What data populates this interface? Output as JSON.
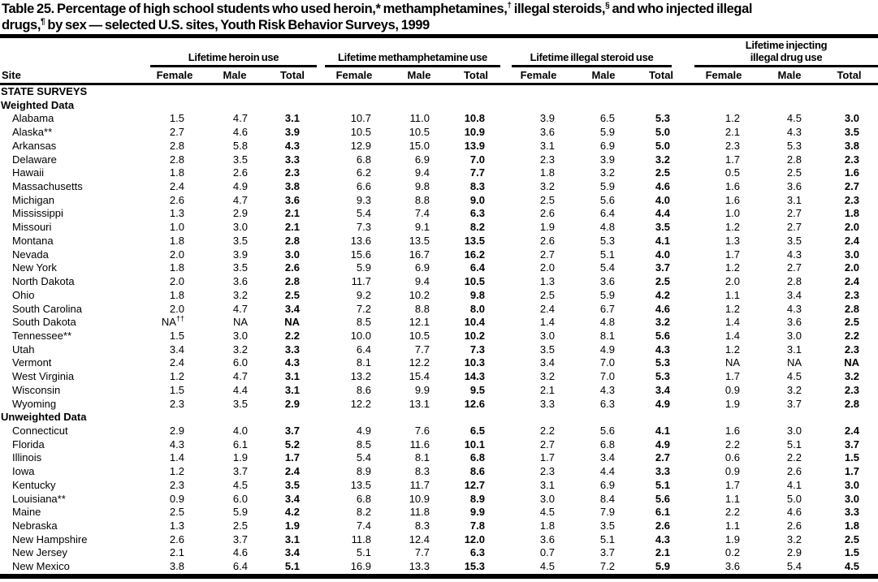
{
  "page": {
    "background": "#ffffff",
    "text_color": "#000000"
  },
  "title": {
    "line1": "Table 25. Percentage of high school students who used heroin,* methamphetamines,† illegal steroids,§ and who injected illegal",
    "line2": "drugs,¶ by sex — selected U.S. sites, Youth Risk Behavior Surveys, 1999"
  },
  "table": {
    "site_header": "Site",
    "column_groups": [
      {
        "label_lines": [
          "Lifetime heroin use"
        ]
      },
      {
        "label_lines": [
          "Lifetime methamphetamine use"
        ]
      },
      {
        "label_lines": [
          "Lifetime illegal steroid use"
        ]
      },
      {
        "label_lines": [
          "Lifetime injecting",
          "illegal drug use"
        ]
      }
    ],
    "sub_headers": [
      "Female",
      "Male",
      "Total"
    ],
    "sections": [
      {
        "heading": "STATE SURVEYS",
        "rows": []
      },
      {
        "heading": "Weighted Data",
        "rows": [
          {
            "site": "Alabama",
            "values": [
              "1.5",
              "4.7",
              "3.1",
              "10.7",
              "11.0",
              "10.8",
              "3.9",
              "6.5",
              "5.3",
              "1.2",
              "4.5",
              "3.0"
            ]
          },
          {
            "site": "Alaska**",
            "values": [
              "2.7",
              "4.6",
              "3.9",
              "10.5",
              "10.5",
              "10.9",
              "3.6",
              "5.9",
              "5.0",
              "2.1",
              "4.3",
              "3.5"
            ]
          },
          {
            "site": "Arkansas",
            "values": [
              "2.8",
              "5.8",
              "4.3",
              "12.9",
              "15.0",
              "13.9",
              "3.1",
              "6.9",
              "5.0",
              "2.3",
              "5.3",
              "3.8"
            ]
          },
          {
            "site": "Delaware",
            "values": [
              "2.8",
              "3.5",
              "3.3",
              "6.8",
              "6.9",
              "7.0",
              "2.3",
              "3.9",
              "3.2",
              "1.7",
              "2.8",
              "2.3"
            ]
          },
          {
            "site": "Hawaii",
            "values": [
              "1.8",
              "2.6",
              "2.3",
              "6.2",
              "9.4",
              "7.7",
              "1.8",
              "3.2",
              "2.5",
              "0.5",
              "2.5",
              "1.6"
            ]
          },
          {
            "site": "Massachusetts",
            "values": [
              "2.4",
              "4.9",
              "3.8",
              "6.6",
              "9.8",
              "8.3",
              "3.2",
              "5.9",
              "4.6",
              "1.6",
              "3.6",
              "2.7"
            ]
          },
          {
            "site": "Michigan",
            "values": [
              "2.6",
              "4.7",
              "3.6",
              "9.3",
              "8.8",
              "9.0",
              "2.5",
              "5.6",
              "4.0",
              "1.6",
              "3.1",
              "2.3"
            ]
          },
          {
            "site": "Mississippi",
            "values": [
              "1.3",
              "2.9",
              "2.1",
              "5.4",
              "7.4",
              "6.3",
              "2.6",
              "6.4",
              "4.4",
              "1.0",
              "2.7",
              "1.8"
            ]
          },
          {
            "site": "Missouri",
            "values": [
              "1.0",
              "3.0",
              "2.1",
              "7.3",
              "9.1",
              "8.2",
              "1.9",
              "4.8",
              "3.5",
              "1.2",
              "2.7",
              "2.0"
            ]
          },
          {
            "site": "Montana",
            "values": [
              "1.8",
              "3.5",
              "2.8",
              "13.6",
              "13.5",
              "13.5",
              "2.6",
              "5.3",
              "4.1",
              "1.3",
              "3.5",
              "2.4"
            ]
          },
          {
            "site": "Nevada",
            "values": [
              "2.0",
              "3.9",
              "3.0",
              "15.6",
              "16.7",
              "16.2",
              "2.7",
              "5.1",
              "4.0",
              "1.7",
              "4.3",
              "3.0"
            ]
          },
          {
            "site": "New York",
            "values": [
              "1.8",
              "3.5",
              "2.6",
              "5.9",
              "6.9",
              "6.4",
              "2.0",
              "5.4",
              "3.7",
              "1.2",
              "2.7",
              "2.0"
            ]
          },
          {
            "site": "North Dakota",
            "values": [
              "2.0",
              "3.6",
              "2.8",
              "11.7",
              "9.4",
              "10.5",
              "1.3",
              "3.6",
              "2.5",
              "2.0",
              "2.8",
              "2.4"
            ]
          },
          {
            "site": "Ohio",
            "values": [
              "1.8",
              "3.2",
              "2.5",
              "9.2",
              "10.2",
              "9.8",
              "2.5",
              "5.9",
              "4.2",
              "1.1",
              "3.4",
              "2.3"
            ]
          },
          {
            "site": "South Carolina",
            "values": [
              "2.0",
              "4.7",
              "3.4",
              "7.2",
              "8.8",
              "8.0",
              "2.4",
              "6.7",
              "4.6",
              "1.2",
              "4.3",
              "2.8"
            ]
          },
          {
            "site": "South Dakota",
            "values": [
              "NA††",
              "NA",
              "NA",
              "8.5",
              "12.1",
              "10.4",
              "1.4",
              "4.8",
              "3.2",
              "1.4",
              "3.6",
              "2.5"
            ]
          },
          {
            "site": "Tennessee**",
            "values": [
              "1.5",
              "3.0",
              "2.2",
              "10.0",
              "10.5",
              "10.2",
              "3.0",
              "8.1",
              "5.6",
              "1.4",
              "3.0",
              "2.2"
            ]
          },
          {
            "site": "Utah",
            "values": [
              "3.4",
              "3.2",
              "3.3",
              "6.4",
              "7.7",
              "7.3",
              "3.5",
              "4.9",
              "4.3",
              "1.2",
              "3.1",
              "2.3"
            ]
          },
          {
            "site": "Vermont",
            "values": [
              "2.4",
              "6.0",
              "4.3",
              "8.1",
              "12.2",
              "10.3",
              "3.4",
              "7.0",
              "5.3",
              "NA",
              "NA",
              "NA"
            ]
          },
          {
            "site": "West Virginia",
            "values": [
              "1.2",
              "4.7",
              "3.1",
              "13.2",
              "15.4",
              "14.3",
              "3.2",
              "7.0",
              "5.3",
              "1.7",
              "4.5",
              "3.2"
            ]
          },
          {
            "site": "Wisconsin",
            "values": [
              "1.5",
              "4.4",
              "3.1",
              "8.6",
              "9.9",
              "9.5",
              "2.1",
              "4.3",
              "3.4",
              "0.9",
              "3.2",
              "2.3"
            ]
          },
          {
            "site": "Wyoming",
            "values": [
              "2.3",
              "3.5",
              "2.9",
              "12.2",
              "13.1",
              "12.6",
              "3.3",
              "6.3",
              "4.9",
              "1.9",
              "3.7",
              "2.8"
            ]
          }
        ]
      },
      {
        "heading": "Unweighted Data",
        "rows": [
          {
            "site": "Connecticut",
            "values": [
              "2.9",
              "4.0",
              "3.7",
              "4.9",
              "7.6",
              "6.5",
              "2.2",
              "5.6",
              "4.1",
              "1.6",
              "3.0",
              "2.4"
            ]
          },
          {
            "site": "Florida",
            "values": [
              "4.3",
              "6.1",
              "5.2",
              "8.5",
              "11.6",
              "10.1",
              "2.7",
              "6.8",
              "4.9",
              "2.2",
              "5.1",
              "3.7"
            ]
          },
          {
            "site": "Illinois",
            "values": [
              "1.4",
              "1.9",
              "1.7",
              "5.4",
              "8.1",
              "6.8",
              "1.7",
              "3.4",
              "2.7",
              "0.6",
              "2.2",
              "1.5"
            ]
          },
          {
            "site": "Iowa",
            "values": [
              "1.2",
              "3.7",
              "2.4",
              "8.9",
              "8.3",
              "8.6",
              "2.3",
              "4.4",
              "3.3",
              "0.9",
              "2.6",
              "1.7"
            ]
          },
          {
            "site": "Kentucky",
            "values": [
              "2.3",
              "4.5",
              "3.5",
              "13.5",
              "11.7",
              "12.7",
              "3.1",
              "6.9",
              "5.1",
              "1.7",
              "4.1",
              "3.0"
            ]
          },
          {
            "site": "Louisiana**",
            "values": [
              "0.9",
              "6.0",
              "3.4",
              "6.8",
              "10.9",
              "8.9",
              "3.0",
              "8.4",
              "5.6",
              "1.1",
              "5.0",
              "3.0"
            ]
          },
          {
            "site": "Maine",
            "values": [
              "2.5",
              "5.9",
              "4.2",
              "8.2",
              "11.8",
              "9.9",
              "4.5",
              "7.9",
              "6.1",
              "2.2",
              "4.6",
              "3.3"
            ]
          },
          {
            "site": "Nebraska",
            "values": [
              "1.3",
              "2.5",
              "1.9",
              "7.4",
              "8.3",
              "7.8",
              "1.8",
              "3.5",
              "2.6",
              "1.1",
              "2.6",
              "1.8"
            ]
          },
          {
            "site": "New Hampshire",
            "values": [
              "2.6",
              "3.7",
              "3.1",
              "11.8",
              "12.4",
              "12.0",
              "3.6",
              "5.1",
              "4.3",
              "1.9",
              "3.2",
              "2.5"
            ]
          },
          {
            "site": "New Jersey",
            "values": [
              "2.1",
              "4.6",
              "3.4",
              "5.1",
              "7.7",
              "6.3",
              "0.7",
              "3.7",
              "2.1",
              "0.2",
              "2.9",
              "1.5"
            ]
          },
          {
            "site": "New Mexico",
            "values": [
              "3.8",
              "6.4",
              "5.1",
              "16.9",
              "13.3",
              "15.3",
              "4.5",
              "7.2",
              "5.9",
              "3.6",
              "5.4",
              "4.5"
            ]
          }
        ]
      }
    ]
  }
}
